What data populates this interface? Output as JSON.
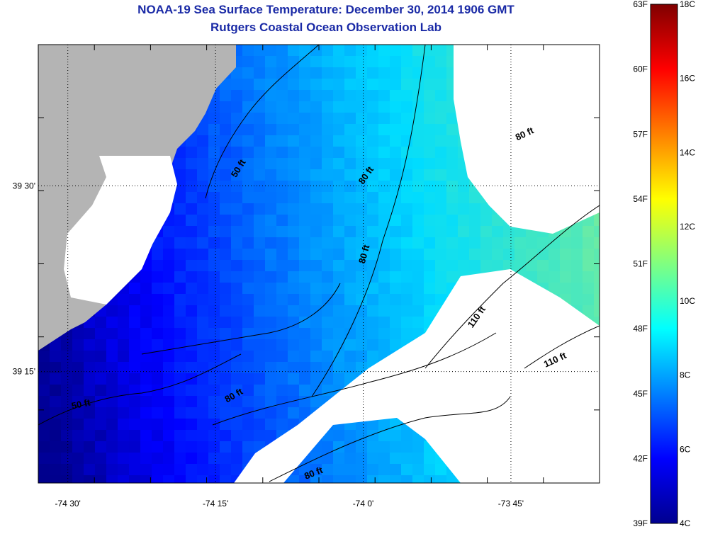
{
  "header": {
    "title": "NOAA-19 Sea Surface Temperature:  December 30, 2014 1906 GMT",
    "subtitle": "Rutgers Coastal Ocean Observation Lab"
  },
  "map": {
    "lon_range": [
      -74.55,
      -73.6
    ],
    "lat_range": [
      39.1,
      39.69
    ],
    "x_ticks": [
      {
        "lon": -74.5,
        "label": "-74 30'"
      },
      {
        "lon": -74.25,
        "label": "-74 15'"
      },
      {
        "lon": -74.0,
        "label": "-74 0'"
      },
      {
        "lon": -73.75,
        "label": "-73 45'"
      }
    ],
    "y_ticks": [
      {
        "lat": 39.5,
        "label": "39 30'"
      },
      {
        "lat": 39.25,
        "label": "39 15'"
      }
    ],
    "land_color": "#b4b4b4",
    "nodata_color": "#ffffff",
    "contour_labels": [
      {
        "text": "50 ft",
        "angle": -58
      },
      {
        "text": "50 ft",
        "angle": -12
      },
      {
        "text": "80 ft",
        "angle": -55
      },
      {
        "text": "80 ft",
        "angle": -75
      },
      {
        "text": "80 ft",
        "angle": -30
      },
      {
        "text": "80 ft",
        "angle": -22
      },
      {
        "text": "80 ft",
        "angle": -25
      },
      {
        "text": "110 ft",
        "angle": -55
      },
      {
        "text": "110 ft",
        "angle": -25
      }
    ]
  },
  "colorbar": {
    "range_c": [
      4,
      18
    ],
    "labels_c": [
      "18C",
      "16C",
      "14C",
      "12C",
      "10C",
      "8C",
      "6C",
      "4C"
    ],
    "labels_f": [
      "63F",
      "60F",
      "57F",
      "54F",
      "51F",
      "48F",
      "45F",
      "42F",
      "39F"
    ],
    "colors": [
      "#00008f",
      "#0000ff",
      "#0080ff",
      "#00ffff",
      "#80ff80",
      "#ffff00",
      "#ff8000",
      "#ff0000",
      "#800000"
    ]
  }
}
